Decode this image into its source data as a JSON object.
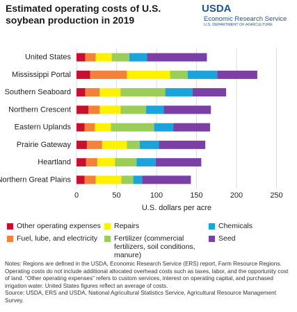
{
  "chart_data": {
    "type": "stacked-barh",
    "title": "Estimated operating costs of U.S. soybean production in 2019",
    "logo": {
      "mark": "USDA",
      "agency": "Economic Research Service",
      "department": "U.S. DEPARTMENT OF AGRICULTURE"
    },
    "categories": [
      "United States",
      "Mississippi Portal",
      "Southern Seaboard",
      "Northern Crescent",
      "Eastern Uplands",
      "Prairie Gateway",
      "Heartland",
      "Northern Great Plains"
    ],
    "series": [
      {
        "name": "Other operating expenses",
        "color": "#c8102e",
        "values": [
          11,
          17,
          11,
          15,
          10,
          13,
          12,
          10
        ]
      },
      {
        "name": "Fuel, lube, and electricity",
        "color": "#f4813a",
        "values": [
          13,
          46,
          18,
          14,
          13,
          19,
          14,
          14
        ]
      },
      {
        "name": "Repairs",
        "color": "#fff200",
        "values": [
          20,
          54,
          26,
          26,
          20,
          31,
          22,
          32
        ]
      },
      {
        "name": "Fertilizer (commercial fertilizers, soil conditions, manure)",
        "color": "#9bcd5a",
        "values": [
          22,
          22,
          56,
          32,
          54,
          16,
          27,
          15
        ]
      },
      {
        "name": "Chemicals",
        "color": "#1ba3dc",
        "values": [
          22,
          37,
          34,
          22,
          24,
          24,
          24,
          11
        ]
      },
      {
        "name": "Seed",
        "color": "#7b3fa6",
        "values": [
          75,
          50,
          42,
          59,
          46,
          58,
          57,
          61
        ]
      }
    ],
    "xlabel": "U.S. dollars per acre",
    "xlim": [
      0,
      260
    ],
    "xticks": [
      0,
      50,
      100,
      150,
      200,
      250
    ],
    "grid": true,
    "notes": "Notes: Regions are defined in the USDA, Economic Research Service (ERS) report, Farm Resource Regions. Operating costs do not include additional allocated overhead costs such as taxes, labor, and the opportunity cost of land. “Other operating expenses” refers to custom services, interest on operating capital, and purchased irrigation water. United States figures reflect an average of costs.",
    "source": "Source: USDA, ERS and USDA, National Agricultural Statistics Service, Agricultural Resource Management Survey."
  }
}
